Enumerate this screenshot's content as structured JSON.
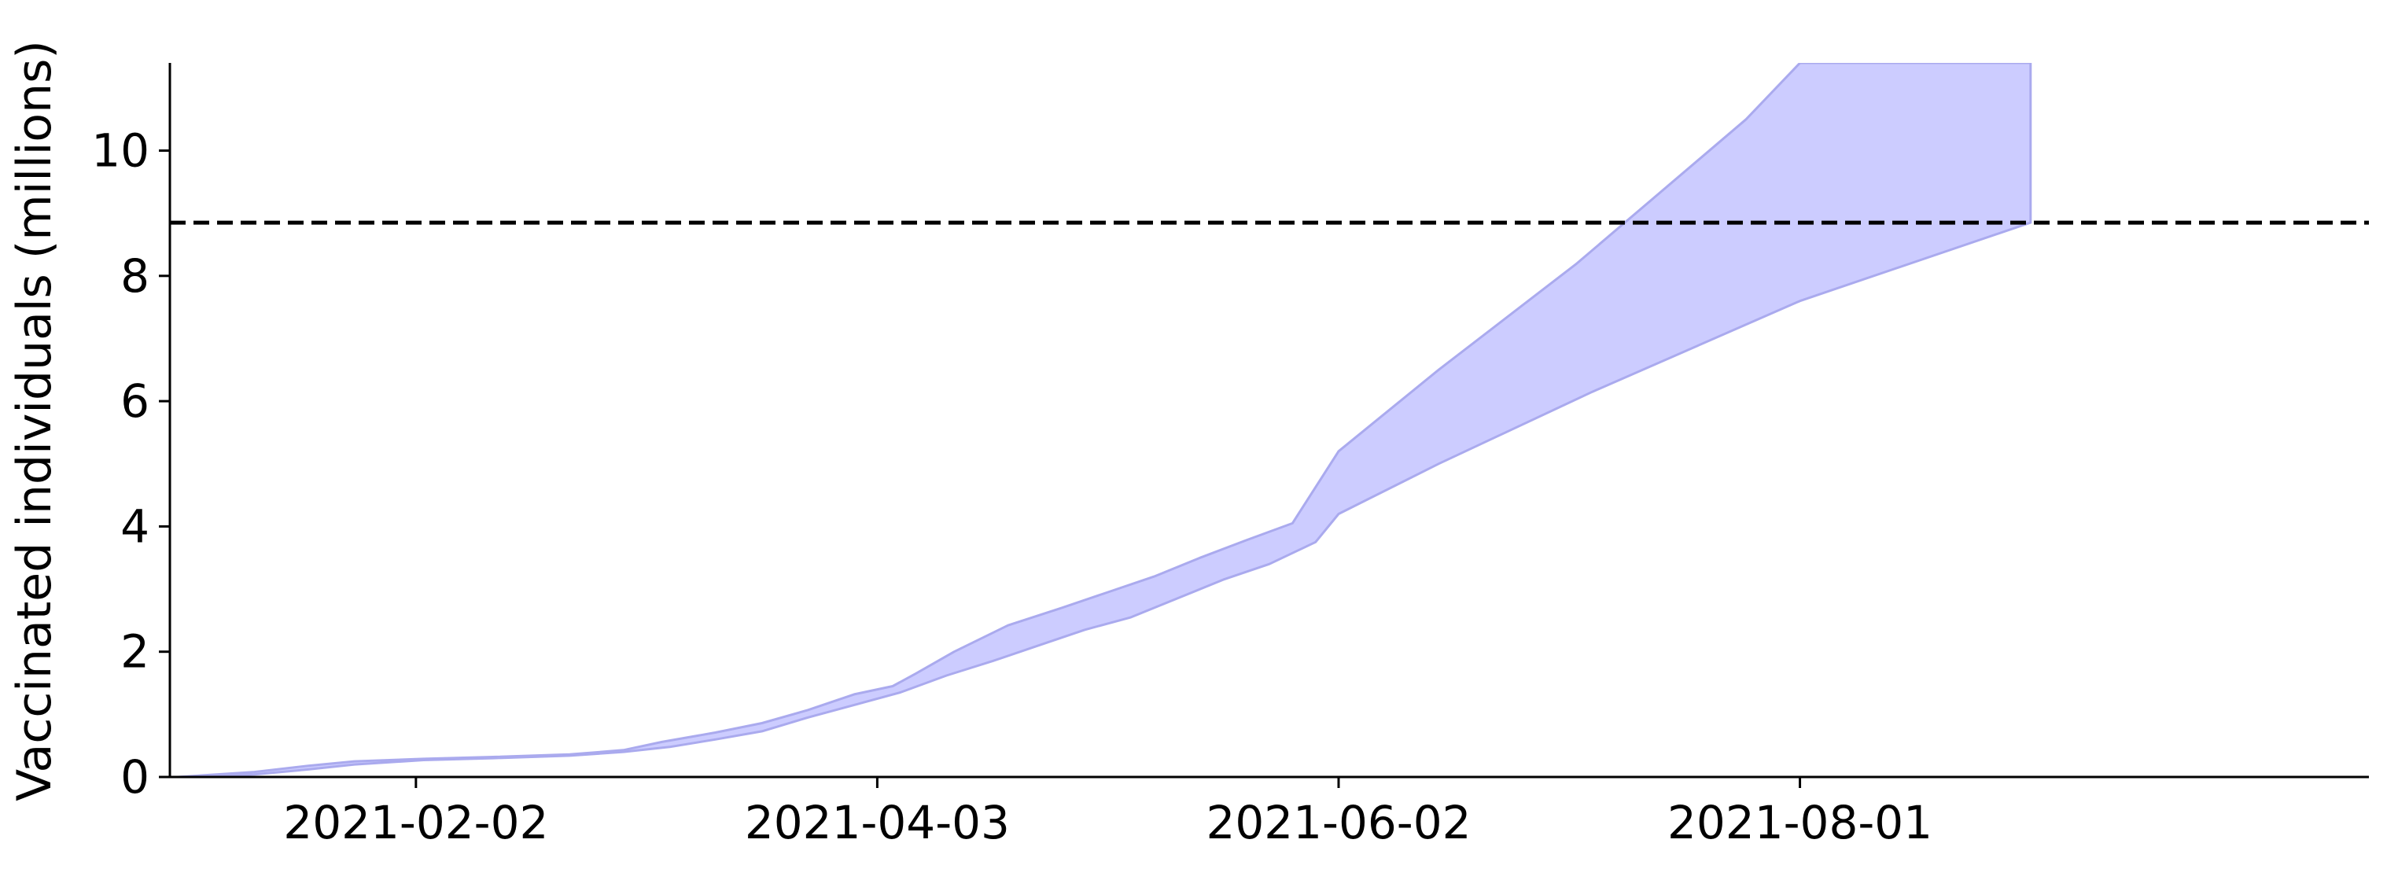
{
  "chart_data": {
    "type": "area",
    "title": "",
    "xlabel": "",
    "ylabel": "Vaccinated individuals (millions)",
    "x_range": [
      "2021-01-01",
      "2021-10-14"
    ],
    "ylim": [
      0,
      11.4
    ],
    "x_ticks": [
      "2021-02-02",
      "2021-04-03",
      "2021-06-02",
      "2021-08-01"
    ],
    "y_ticks": [
      0,
      2,
      4,
      6,
      8,
      10
    ],
    "y_tick_labels": [
      "0",
      "2",
      "4",
      "6",
      "8",
      "10"
    ],
    "grid": false,
    "legend": "none",
    "band": {
      "fill_color": "#ccccff",
      "edge_color": "#aaaaee",
      "upper": [
        {
          "x": "2021-01-02",
          "y": 0.0
        },
        {
          "x": "2021-01-12",
          "y": 0.08
        },
        {
          "x": "2021-01-19",
          "y": 0.18
        },
        {
          "x": "2021-01-25",
          "y": 0.25
        },
        {
          "x": "2021-02-03",
          "y": 0.29
        },
        {
          "x": "2021-02-12",
          "y": 0.32
        },
        {
          "x": "2021-02-22",
          "y": 0.36
        },
        {
          "x": "2021-03-01",
          "y": 0.43
        },
        {
          "x": "2021-03-06",
          "y": 0.56
        },
        {
          "x": "2021-03-13",
          "y": 0.71
        },
        {
          "x": "2021-03-19",
          "y": 0.86
        },
        {
          "x": "2021-03-25",
          "y": 1.07
        },
        {
          "x": "2021-03-31",
          "y": 1.32
        },
        {
          "x": "2021-04-05",
          "y": 1.45
        },
        {
          "x": "2021-04-08",
          "y": 1.65
        },
        {
          "x": "2021-04-13",
          "y": 2.0
        },
        {
          "x": "2021-04-20",
          "y": 2.42
        },
        {
          "x": "2021-04-27",
          "y": 2.7
        },
        {
          "x": "2021-05-03",
          "y": 2.95
        },
        {
          "x": "2021-05-09",
          "y": 3.2
        },
        {
          "x": "2021-05-15",
          "y": 3.5
        },
        {
          "x": "2021-05-21",
          "y": 3.78
        },
        {
          "x": "2021-05-27",
          "y": 4.05
        },
        {
          "x": "2021-06-02",
          "y": 5.2
        },
        {
          "x": "2021-06-15",
          "y": 6.5
        },
        {
          "x": "2021-07-03",
          "y": 8.2
        },
        {
          "x": "2021-07-25",
          "y": 10.5
        },
        {
          "x": "2021-08-01",
          "y": 11.4
        },
        {
          "x": "2021-08-31",
          "y": 11.4
        }
      ],
      "lower": [
        {
          "x": "2021-08-31",
          "y": 8.85
        },
        {
          "x": "2021-08-01",
          "y": 7.6
        },
        {
          "x": "2021-07-05",
          "y": 6.15
        },
        {
          "x": "2021-06-15",
          "y": 5.0
        },
        {
          "x": "2021-06-02",
          "y": 4.2
        },
        {
          "x": "2021-05-30",
          "y": 3.75
        },
        {
          "x": "2021-05-24",
          "y": 3.4
        },
        {
          "x": "2021-05-18",
          "y": 3.15
        },
        {
          "x": "2021-05-12",
          "y": 2.85
        },
        {
          "x": "2021-05-06",
          "y": 2.55
        },
        {
          "x": "2021-04-30",
          "y": 2.35
        },
        {
          "x": "2021-04-24",
          "y": 2.1
        },
        {
          "x": "2021-04-18",
          "y": 1.85
        },
        {
          "x": "2021-04-12",
          "y": 1.62
        },
        {
          "x": "2021-04-06",
          "y": 1.35
        },
        {
          "x": "2021-03-31",
          "y": 1.15
        },
        {
          "x": "2021-03-25",
          "y": 0.95
        },
        {
          "x": "2021-03-19",
          "y": 0.73
        },
        {
          "x": "2021-03-13",
          "y": 0.6
        },
        {
          "x": "2021-03-07",
          "y": 0.48
        },
        {
          "x": "2021-03-01",
          "y": 0.4
        },
        {
          "x": "2021-02-22",
          "y": 0.34
        },
        {
          "x": "2021-02-12",
          "y": 0.3
        },
        {
          "x": "2021-02-03",
          "y": 0.27
        },
        {
          "x": "2021-01-25",
          "y": 0.2
        },
        {
          "x": "2021-01-19",
          "y": 0.12
        },
        {
          "x": "2021-01-12",
          "y": 0.04
        },
        {
          "x": "2021-01-02",
          "y": 0.0
        }
      ]
    },
    "reference_line": {
      "y": 8.85,
      "style": "dashed",
      "color": "#000000"
    }
  }
}
